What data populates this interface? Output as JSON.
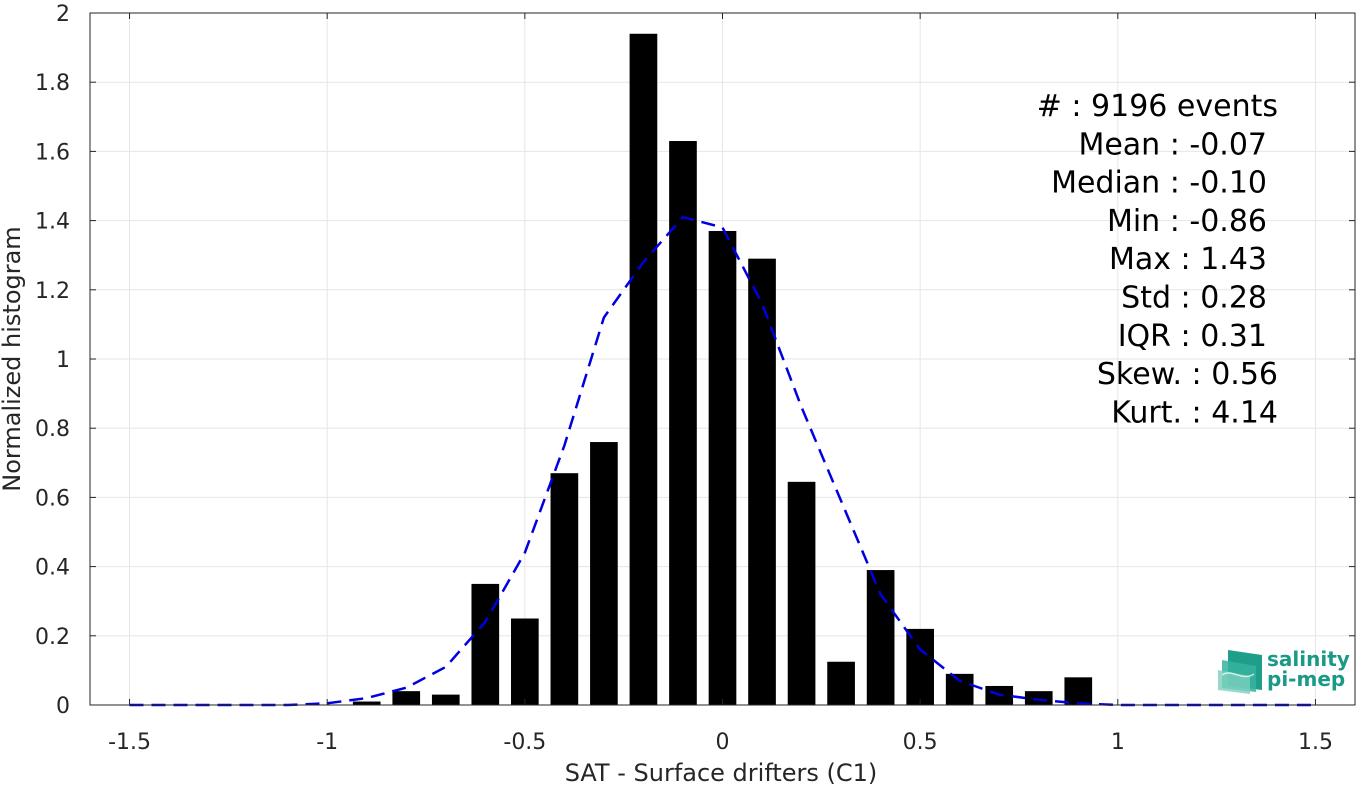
{
  "chart_data": {
    "type": "bar",
    "xlabel": "SAT - Surface drifters (C1)",
    "ylabel": "Normalized histogram",
    "xlim": [
      -1.6,
      1.6
    ],
    "ylim": [
      0,
      2
    ],
    "xticks": [
      -1.5,
      -1,
      -0.5,
      0,
      0.5,
      1,
      1.5
    ],
    "xtick_labels": [
      "-1.5",
      "-1",
      "-0.5",
      "0",
      "0.5",
      "1",
      "1.5"
    ],
    "yticks": [
      0,
      0.2,
      0.4,
      0.6,
      0.8,
      1,
      1.2,
      1.4,
      1.6,
      1.8,
      2
    ],
    "ytick_labels": [
      "0",
      "0.2",
      "0.4",
      "0.6",
      "0.8",
      "1",
      "1.2",
      "1.4",
      "1.6",
      "1.8",
      "2"
    ],
    "grid": true,
    "bar_color": "#000000",
    "bar_width": 0.07,
    "bars": {
      "x": [
        -0.9,
        -0.8,
        -0.7,
        -0.6,
        -0.5,
        -0.4,
        -0.3,
        -0.2,
        -0.1,
        0.0,
        0.1,
        0.2,
        0.3,
        0.4,
        0.5,
        0.6,
        0.7,
        0.8,
        0.9
      ],
      "values": [
        0.01,
        0.04,
        0.03,
        0.35,
        0.25,
        0.67,
        0.76,
        1.94,
        1.63,
        1.37,
        1.29,
        0.645,
        0.125,
        0.39,
        0.22,
        0.09,
        0.055,
        0.04,
        0.08
      ]
    },
    "fit": {
      "style": "dashed",
      "color": "#0000e0",
      "x": [
        -1.5,
        -1.4,
        -1.3,
        -1.2,
        -1.1,
        -1.0,
        -0.9,
        -0.8,
        -0.7,
        -0.6,
        -0.5,
        -0.4,
        -0.3,
        -0.2,
        -0.1,
        0.0,
        0.1,
        0.2,
        0.3,
        0.4,
        0.5,
        0.6,
        0.7,
        0.8,
        0.9,
        1.0,
        1.1,
        1.2,
        1.3,
        1.4,
        1.5
      ],
      "y": [
        0.0,
        0.0,
        0.0,
        0.0,
        0.0,
        0.005,
        0.02,
        0.05,
        0.11,
        0.24,
        0.44,
        0.75,
        1.12,
        1.28,
        1.41,
        1.38,
        1.16,
        0.86,
        0.59,
        0.32,
        0.16,
        0.07,
        0.03,
        0.015,
        0.005,
        0.0,
        0.0,
        0.0,
        0.0,
        0.0,
        0.0
      ]
    },
    "stats": [
      "#  : 9196 events",
      "Mean : -0.07",
      "Median : -0.10",
      "Min : -0.86",
      "Max : 1.43",
      "Std : 0.28",
      "IQR : 0.31",
      "Skew. : 0.56",
      "Kurt. : 4.14"
    ]
  },
  "logo": {
    "line1": "salinity",
    "line2": "pi-mep"
  }
}
